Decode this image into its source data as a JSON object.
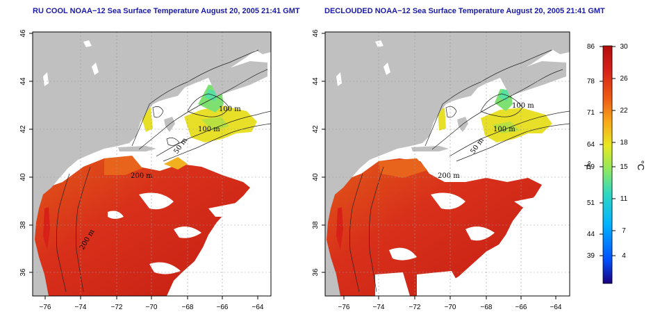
{
  "panels": [
    {
      "id": "left",
      "title": "RU COOL NOAA−12 Sea Surface Temperature August 20, 2005 21:41 GMT",
      "x_ticks": [
        "−76",
        "−74",
        "−72",
        "−70",
        "−68",
        "−66",
        "−64"
      ],
      "y_ticks": [
        "36",
        "38",
        "40",
        "42",
        "44",
        "46"
      ],
      "contour_labels": [
        "100 m",
        "100 m",
        "50 m",
        "200 m",
        "200 m"
      ]
    },
    {
      "id": "right",
      "title": "DECLOUDED NOAA−12 Sea Surface Temperature August 20, 2005 21:41 GMT",
      "x_ticks": [
        "−76",
        "−74",
        "−72",
        "−70",
        "−68",
        "−66",
        "−64"
      ],
      "y_ticks": [
        "36",
        "38",
        "40",
        "42",
        "44",
        "46"
      ],
      "contour_labels": [
        "100 m",
        "100 m",
        "50 m",
        "200 m"
      ]
    }
  ],
  "colorbar": {
    "fahrenheit_ticks": [
      "86",
      "78",
      "71",
      "64",
      "59",
      "51",
      "44",
      "39"
    ],
    "celsius_ticks": [
      "30",
      "26",
      "22",
      "18",
      "15",
      "11",
      "7",
      "4"
    ],
    "fahrenheit_unit": "°F",
    "celsius_unit": "°C",
    "range_celsius": [
      0,
      30
    ],
    "colors": [
      "#1a0080",
      "#0050ff",
      "#00b4ff",
      "#30d8c0",
      "#90e860",
      "#e8e820",
      "#f8a818",
      "#ee5a14",
      "#d62018",
      "#b40c0c"
    ]
  },
  "map_colors": {
    "land": "#c0c0c0",
    "ocean_warm": "#d42a14",
    "ocean_mid": "#e8641c",
    "cool_yellow": "#e8e028",
    "cool_green": "#58e080",
    "cloud": "#ffffff"
  }
}
